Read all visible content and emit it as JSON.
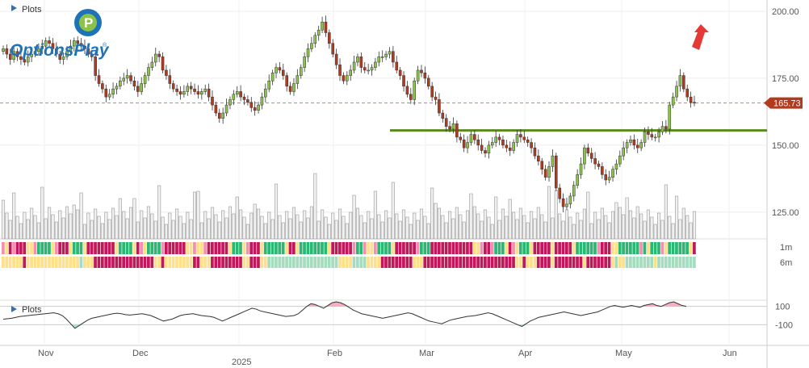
{
  "header": {
    "plots_label": "Plots",
    "lower_plots_label": "Plots"
  },
  "logo": {
    "text": "OptionsPlay",
    "registered": "®"
  },
  "colors": {
    "up": "#8bc34a",
    "down": "#b23a1e",
    "trendline": "#5a8a1e",
    "price_tag": "#b23a1e",
    "arrow": "#e53935",
    "osc_pos": "#f4a6b8",
    "osc_neg": "#a7dfc4",
    "bar_red": "#c2185b",
    "bar_green": "#2bb673",
    "bar_yellow": "#ffe08a",
    "bar_pink": "#f48fb1",
    "bar_lightgreen": "#a5dcc0"
  },
  "indicator_labels": {
    "row1": "1m",
    "row2": "6m"
  },
  "current_price_label": "165.73",
  "chart_data": {
    "type": "candlestick",
    "price_axis": {
      "ylim": [
        115,
        203
      ],
      "ticks": [
        125,
        150,
        175,
        200
      ],
      "tick_labels": [
        "125.00",
        "150.00",
        "175.00",
        "200.00"
      ]
    },
    "x_ticks": [
      "Nov",
      "Dec",
      "2025",
      "Feb",
      "Mar",
      "Apr",
      "May",
      "Jun"
    ],
    "support_line": 155.5,
    "current_price": 165.73,
    "closes": [
      186,
      184,
      182,
      185,
      183,
      182,
      181,
      183,
      184,
      185,
      186,
      187,
      189,
      188,
      186,
      184,
      182,
      183,
      185,
      187,
      189,
      188,
      187,
      186,
      184,
      183,
      176,
      173,
      171,
      168,
      169,
      171,
      172,
      174,
      175,
      176,
      174,
      172,
      170,
      173,
      176,
      179,
      181,
      184,
      183,
      178,
      176,
      173,
      171,
      170,
      169,
      170,
      172,
      171,
      170,
      169,
      170,
      171,
      168,
      165,
      162,
      160,
      162,
      165,
      167,
      169,
      170,
      168,
      167,
      166,
      164,
      163,
      165,
      168,
      171,
      174,
      177,
      179,
      178,
      176,
      172,
      170,
      173,
      176,
      179,
      183,
      186,
      188,
      191,
      193,
      196,
      192,
      188,
      184,
      180,
      176,
      174,
      176,
      178,
      181,
      183,
      179,
      178,
      178,
      179,
      181,
      183,
      183,
      184,
      185,
      181,
      178,
      176,
      172,
      169,
      167,
      174,
      178,
      177,
      175,
      172,
      168,
      167,
      162,
      160,
      157,
      156,
      158,
      153,
      152,
      149,
      151,
      154,
      152,
      150,
      148,
      147,
      150,
      151,
      153,
      152,
      150,
      149,
      148,
      151,
      154,
      153,
      152,
      151,
      149,
      146,
      144,
      141,
      138,
      142,
      146,
      134,
      130,
      127,
      128,
      131,
      135,
      139,
      143,
      149,
      147,
      145,
      143,
      142,
      139,
      137,
      138,
      141,
      143,
      146,
      149,
      151,
      152,
      150,
      149,
      151,
      155,
      154,
      153,
      153,
      155,
      157,
      156,
      165,
      168,
      172,
      176,
      171,
      168,
      166,
      165.73
    ],
    "dates_note": "daily candles, late Oct 2024 to mid May 2025",
    "rows": [
      "1m",
      "6m"
    ],
    "oscillator_axis": {
      "ticks": [
        100,
        -100
      ],
      "tick_labels": [
        "100",
        "-100"
      ]
    },
    "oscillator": [
      -40,
      -35,
      -30,
      -20,
      -10,
      -5,
      0,
      5,
      10,
      15,
      20,
      25,
      30,
      20,
      0,
      -40,
      -90,
      -140,
      -110,
      -80,
      -50,
      -30,
      -20,
      -10,
      0,
      10,
      20,
      25,
      20,
      10,
      5,
      10,
      15,
      20,
      10,
      0,
      -20,
      -40,
      -60,
      -50,
      -40,
      -20,
      0,
      10,
      15,
      20,
      10,
      0,
      -5,
      -10,
      -20,
      -40,
      -60,
      -40,
      -20,
      0,
      20,
      40,
      60,
      80,
      70,
      50,
      40,
      30,
      20,
      10,
      0,
      -10,
      -5,
      0,
      20,
      60,
      100,
      130,
      120,
      100,
      80,
      110,
      140,
      150,
      140,
      120,
      90,
      60,
      40,
      20,
      10,
      0,
      -10,
      -20,
      -30,
      -20,
      -10,
      0,
      10,
      20,
      30,
      20,
      0,
      -20,
      -40,
      -60,
      -70,
      -80,
      -90,
      -70,
      -50,
      -40,
      -30,
      -20,
      -10,
      -5,
      0,
      10,
      20,
      30,
      20,
      0,
      -20,
      -40,
      -60,
      -80,
      -100,
      -120,
      -90,
      -60,
      -40,
      -20,
      -10,
      0,
      10,
      20,
      30,
      40,
      30,
      20,
      10,
      0,
      10,
      20,
      30,
      40,
      60,
      80,
      100,
      110,
      100,
      90,
      100,
      110,
      100,
      90,
      110,
      120,
      130,
      110,
      100,
      120,
      140,
      150,
      130,
      110,
      100
    ]
  }
}
